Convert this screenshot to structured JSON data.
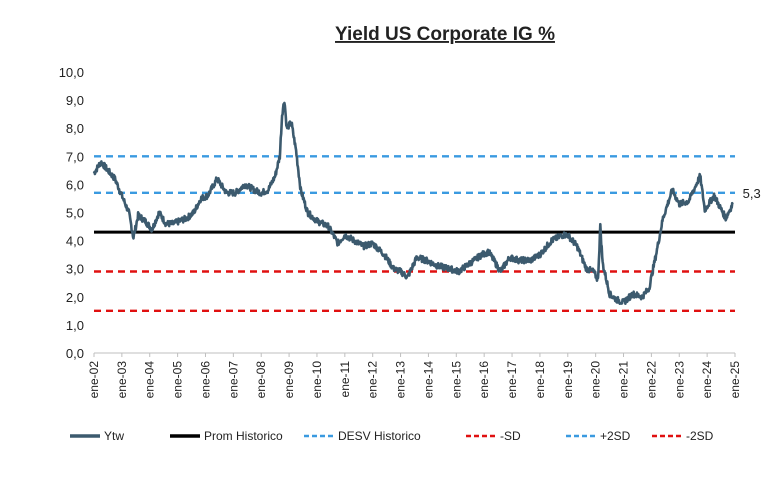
{
  "chart_data": {
    "type": "line",
    "title": "Yield US Corporate IG %",
    "xlabel": "",
    "ylabel": "",
    "ylim": [
      0,
      10
    ],
    "yticks": [
      "0,0",
      "1,0",
      "2,0",
      "3,0",
      "4,0",
      "5,0",
      "6,0",
      "7,0",
      "8,0",
      "9,0",
      "10,0"
    ],
    "xticks": [
      "ene-02",
      "ene-03",
      "ene-04",
      "ene-05",
      "ene-06",
      "ene-07",
      "ene-08",
      "ene-09",
      "ene-10",
      "ene-11",
      "ene-12",
      "ene-13",
      "ene-14",
      "ene-15",
      "ene-16",
      "ene-17",
      "ene-18",
      "ene-19",
      "ene-20",
      "ene-21",
      "ene-22",
      "ene-23",
      "ene-24",
      "ene-25"
    ],
    "grid": false,
    "legend_position": "bottom",
    "last_value_label": "5,3",
    "series": [
      {
        "name": "Ytw",
        "color": "#3c5a6e",
        "style": "solid",
        "points": [
          [
            "2002-01",
            6.4
          ],
          [
            "2002-04",
            6.8
          ],
          [
            "2002-07",
            6.5
          ],
          [
            "2002-10",
            6.2
          ],
          [
            "2003-01",
            5.6
          ],
          [
            "2003-04",
            5.0
          ],
          [
            "2003-06",
            4.1
          ],
          [
            "2003-08",
            4.9
          ],
          [
            "2003-11",
            4.7
          ],
          [
            "2004-02",
            4.4
          ],
          [
            "2004-05",
            5.0
          ],
          [
            "2004-08",
            4.6
          ],
          [
            "2004-11",
            4.6
          ],
          [
            "2005-02",
            4.7
          ],
          [
            "2005-05",
            4.8
          ],
          [
            "2005-08",
            5.0
          ],
          [
            "2005-11",
            5.5
          ],
          [
            "2006-02",
            5.6
          ],
          [
            "2006-06",
            6.2
          ],
          [
            "2006-10",
            5.7
          ],
          [
            "2007-02",
            5.7
          ],
          [
            "2007-06",
            6.0
          ],
          [
            "2007-10",
            5.8
          ],
          [
            "2008-01",
            5.7
          ],
          [
            "2008-04",
            5.8
          ],
          [
            "2008-07",
            6.3
          ],
          [
            "2008-09",
            7.0
          ],
          [
            "2008-10",
            8.5
          ],
          [
            "2008-11",
            9.0
          ],
          [
            "2008-12",
            8.0
          ],
          [
            "2009-02",
            8.2
          ],
          [
            "2009-04",
            7.2
          ],
          [
            "2009-06",
            5.8
          ],
          [
            "2009-09",
            5.0
          ],
          [
            "2010-01",
            4.7
          ],
          [
            "2010-06",
            4.5
          ],
          [
            "2010-10",
            3.9
          ],
          [
            "2011-01",
            4.2
          ],
          [
            "2011-05",
            4.0
          ],
          [
            "2011-09",
            3.8
          ],
          [
            "2012-01",
            3.9
          ],
          [
            "2012-06",
            3.5
          ],
          [
            "2012-10",
            3.0
          ],
          [
            "2013-01",
            2.9
          ],
          [
            "2013-04",
            2.7
          ],
          [
            "2013-08",
            3.4
          ],
          [
            "2013-12",
            3.3
          ],
          [
            "2014-05",
            3.1
          ],
          [
            "2014-10",
            3.0
          ],
          [
            "2015-02",
            2.9
          ],
          [
            "2015-07",
            3.2
          ],
          [
            "2015-12",
            3.5
          ],
          [
            "2016-03",
            3.6
          ],
          [
            "2016-08",
            2.9
          ],
          [
            "2016-12",
            3.4
          ],
          [
            "2017-04",
            3.3
          ],
          [
            "2017-09",
            3.3
          ],
          [
            "2018-01",
            3.5
          ],
          [
            "2018-06",
            4.0
          ],
          [
            "2018-11",
            4.2
          ],
          [
            "2019-01",
            4.2
          ],
          [
            "2019-05",
            3.8
          ],
          [
            "2019-09",
            3.0
          ],
          [
            "2019-12",
            2.9
          ],
          [
            "2020-02",
            2.6
          ],
          [
            "2020-03",
            4.5
          ],
          [
            "2020-04",
            3.2
          ],
          [
            "2020-07",
            2.1
          ],
          [
            "2020-10",
            1.9
          ],
          [
            "2021-01",
            1.8
          ],
          [
            "2021-05",
            2.1
          ],
          [
            "2021-09",
            2.0
          ],
          [
            "2021-12",
            2.3
          ],
          [
            "2022-03",
            3.5
          ],
          [
            "2022-06",
            4.8
          ],
          [
            "2022-10",
            5.8
          ],
          [
            "2023-01",
            5.3
          ],
          [
            "2023-05",
            5.4
          ],
          [
            "2023-10",
            6.3
          ],
          [
            "2023-12",
            5.1
          ],
          [
            "2024-04",
            5.6
          ],
          [
            "2024-09",
            4.8
          ],
          [
            "2024-12",
            5.3
          ]
        ]
      },
      {
        "name": "Prom Historico",
        "color": "#000000",
        "style": "solid",
        "value": 4.3
      },
      {
        "name": "DESV Historico",
        "color": "#3a9ae0",
        "style": "dashed",
        "value": 5.7
      },
      {
        "name": "-SD",
        "color": "#e01010",
        "style": "dashed",
        "value": 2.9
      },
      {
        "name": "+2SD",
        "color": "#3a9ae0",
        "style": "dashed",
        "value": 7.0
      },
      {
        "name": "-2SD",
        "color": "#e01010",
        "style": "dashed",
        "value": 1.5
      }
    ]
  }
}
